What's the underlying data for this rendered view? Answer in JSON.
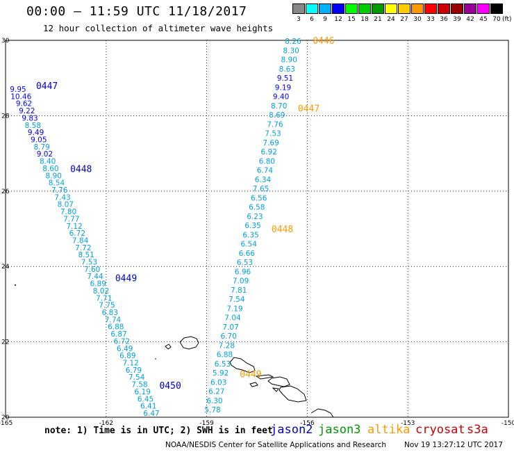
{
  "header": {
    "title": "00:00 — 11:59 UTC 11/18/2017",
    "subtitle": "12 hour collection of altimeter wave heights"
  },
  "colorbar": {
    "unit": "(ft)",
    "bins": [
      {
        "label": "3",
        "color": "#888888"
      },
      {
        "label": "6",
        "color": "#00ffff"
      },
      {
        "label": "9",
        "color": "#00b0ff"
      },
      {
        "label": "12",
        "color": "#0000ff"
      },
      {
        "label": "15",
        "color": "#00ff00"
      },
      {
        "label": "18",
        "color": "#00cc00"
      },
      {
        "label": "21",
        "color": "#009900"
      },
      {
        "label": "24",
        "color": "#ffff00"
      },
      {
        "label": "27",
        "color": "#ffcc00"
      },
      {
        "label": "30",
        "color": "#ff9900"
      },
      {
        "label": "33",
        "color": "#ff0000"
      },
      {
        "label": "36",
        "color": "#cc0000"
      },
      {
        "label": "39",
        "color": "#990000"
      },
      {
        "label": "42",
        "color": "#990099"
      },
      {
        "label": "45",
        "color": "#ff00ff"
      },
      {
        "label": "70",
        "color": "#000000"
      }
    ]
  },
  "axes": {
    "x_ticks": [
      "-165",
      "-162",
      "-159",
      "-156",
      "-153",
      "-150"
    ],
    "y_ticks": [
      "30",
      "28",
      "26",
      "24",
      "22",
      "20"
    ]
  },
  "tracks": [
    {
      "satellite": "jason2",
      "color": "#00a0e0",
      "heights": [
        "9.95",
        "10.46",
        "9.62",
        "9.22",
        "9.83",
        "8.58",
        "9.49",
        "9.05",
        "8.79",
        "9.02",
        "8.40",
        "8.60",
        "8.90",
        "8.54",
        "7.76",
        "7.43",
        "8.07",
        "7.80",
        "7.77",
        "7.12",
        "6.72",
        "7.84",
        "7.72",
        "8.51",
        "7.53",
        "7.60",
        "7.44",
        "6.89",
        "8.02",
        "7.71",
        "7.75",
        "6.83",
        "7.74",
        "6.88",
        "6.87",
        "6.72",
        "6.49",
        "6.89",
        "7.12",
        "6.79",
        "7.54",
        "7.58",
        "6.19",
        "6.45",
        "6.41",
        "6.47"
      ],
      "passes": [
        {
          "label": "0447",
          "lat": 28.8
        },
        {
          "label": "0448",
          "lat": 26.6
        },
        {
          "label": "0449",
          "lat": 23.7
        },
        {
          "label": "0450",
          "lat": 20.85
        }
      ]
    },
    {
      "satellite": "altika",
      "color": "#00a0e0",
      "heights": [
        "8.26",
        "8.30",
        "8.90",
        "8.63",
        "9.51",
        "9.19",
        "9.40",
        "8.70",
        "8.69",
        "7.76",
        "7.53",
        "7.69",
        "6.92",
        "6.80",
        "6.74",
        "6.34",
        "7.65",
        "6.56",
        "6.58",
        "6.23",
        "6.35",
        "6.35",
        "6.54",
        "6.66",
        "6.53",
        "6.96",
        "7.09",
        "7.81",
        "7.54",
        "7.19",
        "7.04",
        "7.07",
        "6.70",
        "7.28",
        "6.88",
        "6.53",
        "5.92",
        "6.03",
        "6.27",
        "6.30",
        "5.78"
      ],
      "passes": [
        {
          "label": "0446",
          "lat": 30.0
        },
        {
          "label": "0447",
          "lat": 28.2
        },
        {
          "label": "0448",
          "lat": 25.0
        },
        {
          "label": "0449",
          "lat": 21.15
        }
      ]
    }
  ],
  "legend": {
    "note": "note: 1) Time is in UTC; 2) SWH is in feet",
    "items": [
      {
        "name": "jason2",
        "color": "#0000cc"
      },
      {
        "name": "jason3",
        "color": "#009900"
      },
      {
        "name": "altika",
        "color": "#ff9900"
      },
      {
        "name": "cryosat",
        "color": "#cc0000"
      },
      {
        "name": "s3a",
        "color": "#cc0000"
      }
    ]
  },
  "footer": {
    "credit": "NOAA/NESDIS Center for Satellite Applications and Research",
    "timestamp": "Nov 19 13:27:12 UTC 2017"
  }
}
